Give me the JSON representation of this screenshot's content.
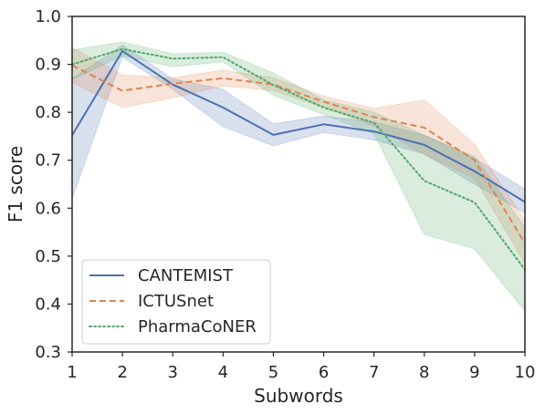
{
  "chart_data": {
    "type": "line",
    "xlabel": "Subwords",
    "ylabel": "F1 score",
    "xlim": [
      1,
      10
    ],
    "ylim": [
      0.3,
      1.0
    ],
    "xticks": [
      1,
      2,
      3,
      4,
      5,
      6,
      7,
      8,
      9,
      10
    ],
    "yticks": [
      "0.3",
      "0.4",
      "0.5",
      "0.6",
      "0.7",
      "0.8",
      "0.9",
      "1.0"
    ],
    "grid": false,
    "legend_position": "lower-left",
    "x": [
      1,
      2,
      3,
      4,
      5,
      6,
      7,
      8,
      9,
      10
    ],
    "series": [
      {
        "name": "CANTEMIST",
        "color": "#4c72b0",
        "dash": "solid",
        "values": [
          0.752,
          0.928,
          0.858,
          0.81,
          0.753,
          0.775,
          0.76,
          0.732,
          0.677,
          0.613
        ],
        "lower": [
          0.62,
          0.915,
          0.848,
          0.77,
          0.73,
          0.758,
          0.742,
          0.713,
          0.65,
          0.59
        ],
        "upper": [
          0.87,
          0.94,
          0.87,
          0.848,
          0.776,
          0.792,
          0.78,
          0.752,
          0.704,
          0.64
        ]
      },
      {
        "name": "ICTUSnet",
        "color": "#dd8452",
        "dash": "dashed",
        "values": [
          0.898,
          0.845,
          0.86,
          0.871,
          0.858,
          0.822,
          0.79,
          0.768,
          0.7,
          0.527
        ],
        "lower": [
          0.862,
          0.81,
          0.83,
          0.855,
          0.845,
          0.81,
          0.772,
          0.712,
          0.662,
          0.485
        ],
        "upper": [
          0.935,
          0.878,
          0.872,
          0.888,
          0.872,
          0.834,
          0.808,
          0.826,
          0.733,
          0.575
        ]
      },
      {
        "name": "PharmaCoNER",
        "color": "#55a868",
        "dash": "dotted",
        "values": [
          0.9,
          0.932,
          0.912,
          0.915,
          0.857,
          0.81,
          0.778,
          0.657,
          0.612,
          0.472
        ],
        "lower": [
          0.868,
          0.918,
          0.895,
          0.905,
          0.835,
          0.795,
          0.755,
          0.545,
          0.515,
          0.385
        ],
        "upper": [
          0.93,
          0.947,
          0.922,
          0.925,
          0.882,
          0.826,
          0.8,
          0.752,
          0.708,
          0.56
        ]
      }
    ]
  }
}
